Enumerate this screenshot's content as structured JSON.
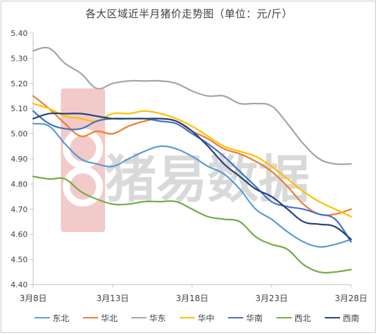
{
  "title": "各大区域近半月猪价走势图（单位：元/斤）",
  "watermark": {
    "text": "猪易数据",
    "logo": "88-logo-icon",
    "text_color": "#d7d7d7",
    "logo_color": "#f3c9c9"
  },
  "chart_data": {
    "type": "line",
    "title": "各大区域近半月猪价走势图（单位：元/斤）",
    "xlabel": "",
    "ylabel": "",
    "x": [
      "3月8日",
      "3月9日",
      "3月10日",
      "3月11日",
      "3月12日",
      "3月13日",
      "3月14日",
      "3月15日",
      "3月16日",
      "3月17日",
      "3月18日",
      "3月19日",
      "3月20日",
      "3月21日",
      "3月22日",
      "3月23日",
      "3月24日",
      "3月25日",
      "3月26日",
      "3月27日",
      "3月28日"
    ],
    "xticks": [
      "3月8日",
      "3月13日",
      "3月18日",
      "3月23日",
      "3月28日"
    ],
    "ylim": [
      4.4,
      5.4
    ],
    "yticks": [
      "4.40",
      "4.50",
      "4.60",
      "4.70",
      "4.80",
      "4.90",
      "5.00",
      "5.10",
      "5.20",
      "5.30",
      "5.40"
    ],
    "grid": false,
    "legend_position": "bottom",
    "series": [
      {
        "name": "东北",
        "color": "#5b9bd5",
        "values": [
          5.04,
          5.03,
          4.96,
          4.9,
          4.88,
          4.87,
          4.9,
          4.93,
          4.95,
          4.94,
          4.91,
          4.87,
          4.84,
          4.78,
          4.7,
          4.66,
          4.61,
          4.57,
          4.55,
          4.56,
          4.58
        ]
      },
      {
        "name": "华北",
        "color": "#ed7d31",
        "values": [
          5.15,
          5.1,
          5.04,
          4.99,
          5.01,
          5.0,
          5.03,
          5.05,
          5.06,
          5.05,
          5.01,
          4.98,
          4.94,
          4.92,
          4.89,
          4.85,
          4.79,
          4.72,
          4.68,
          4.68,
          4.7
        ]
      },
      {
        "name": "华东",
        "color": "#a5a5a5",
        "values": [
          5.33,
          5.34,
          5.28,
          5.24,
          5.18,
          5.2,
          5.21,
          5.21,
          5.21,
          5.2,
          5.17,
          5.15,
          5.15,
          5.12,
          5.12,
          5.11,
          5.04,
          4.96,
          4.9,
          4.88,
          4.88
        ]
      },
      {
        "name": "华中",
        "color": "#ffc000",
        "values": [
          5.12,
          5.1,
          5.07,
          5.06,
          5.05,
          5.08,
          5.08,
          5.09,
          5.08,
          5.06,
          5.03,
          4.99,
          4.95,
          4.93,
          4.91,
          4.87,
          4.82,
          4.77,
          4.73,
          4.7,
          4.67
        ]
      },
      {
        "name": "华南",
        "color": "#4472c4",
        "values": [
          5.09,
          5.04,
          5.02,
          5.02,
          5.05,
          5.06,
          5.06,
          5.06,
          5.05,
          5.04,
          5.0,
          4.96,
          4.91,
          4.85,
          4.79,
          4.73,
          4.71,
          4.7,
          4.68,
          4.66,
          4.57
        ]
      },
      {
        "name": "西北",
        "color": "#70ad47",
        "values": [
          4.83,
          4.82,
          4.82,
          4.77,
          4.74,
          4.72,
          4.72,
          4.73,
          4.73,
          4.73,
          4.7,
          4.67,
          4.66,
          4.65,
          4.59,
          4.56,
          4.54,
          4.48,
          4.45,
          4.45,
          4.46
        ]
      },
      {
        "name": "西南",
        "color": "#264478",
        "values": [
          5.06,
          5.08,
          5.08,
          5.08,
          5.07,
          5.06,
          5.06,
          5.06,
          5.06,
          5.05,
          5.01,
          4.95,
          4.88,
          4.83,
          4.78,
          4.75,
          4.7,
          4.65,
          4.64,
          4.63,
          4.58
        ]
      }
    ]
  }
}
